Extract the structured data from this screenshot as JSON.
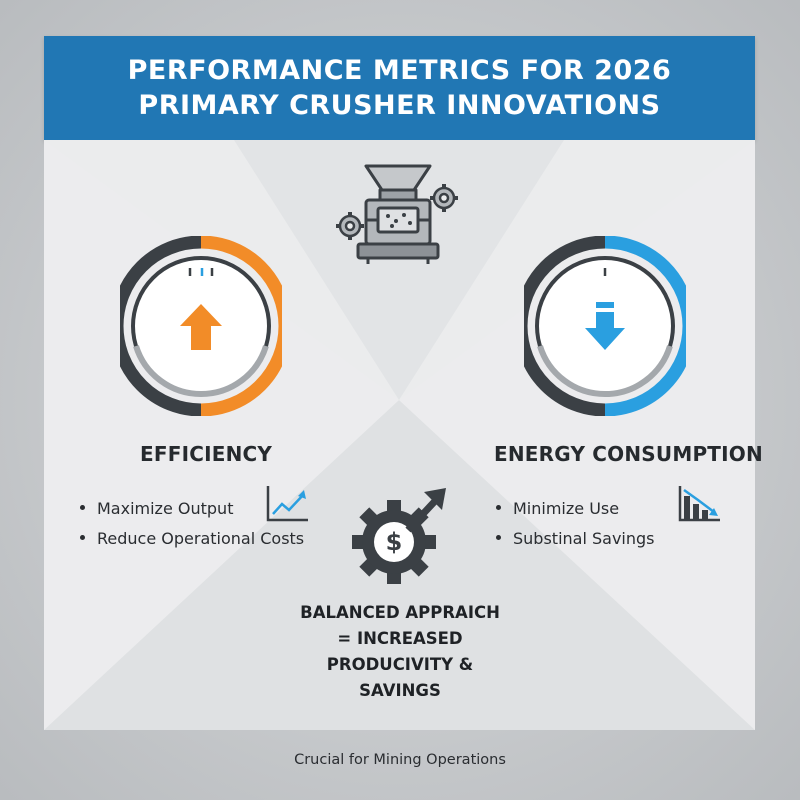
{
  "header": {
    "line1": "PERFORMANCE METRICS FOR 2026",
    "line2": "PRIMARY CRUSHER INNOVATIONS"
  },
  "icons": {
    "top": "crusher-machine-icon",
    "center": "gear-dollar-icon",
    "left_gauge_arrow": "arrow-up-icon",
    "right_gauge_arrow": "arrow-down-icon",
    "left_chart": "line-chart-up-icon",
    "right_chart": "bar-chart-down-icon"
  },
  "efficiency": {
    "title": "EFFICIENCY",
    "bullets": [
      "Maximize Output",
      "Reduce Operational Costs"
    ]
  },
  "energy": {
    "title": "ENERGY CONSUMPTION",
    "bullets": [
      "Minimize Use",
      "Substinal Savings"
    ]
  },
  "center": {
    "line1": "BALANCED APPRAICH",
    "line2": "= INCREASED",
    "line3": "PRODUCIVITY & SAVINGS"
  },
  "footer": "Crucial for Mining Operations",
  "colors": {
    "header_bg": "#2177b4",
    "efficiency_accent": "#f28c28",
    "energy_accent": "#2a9fe0",
    "dark": "#3b4045"
  }
}
